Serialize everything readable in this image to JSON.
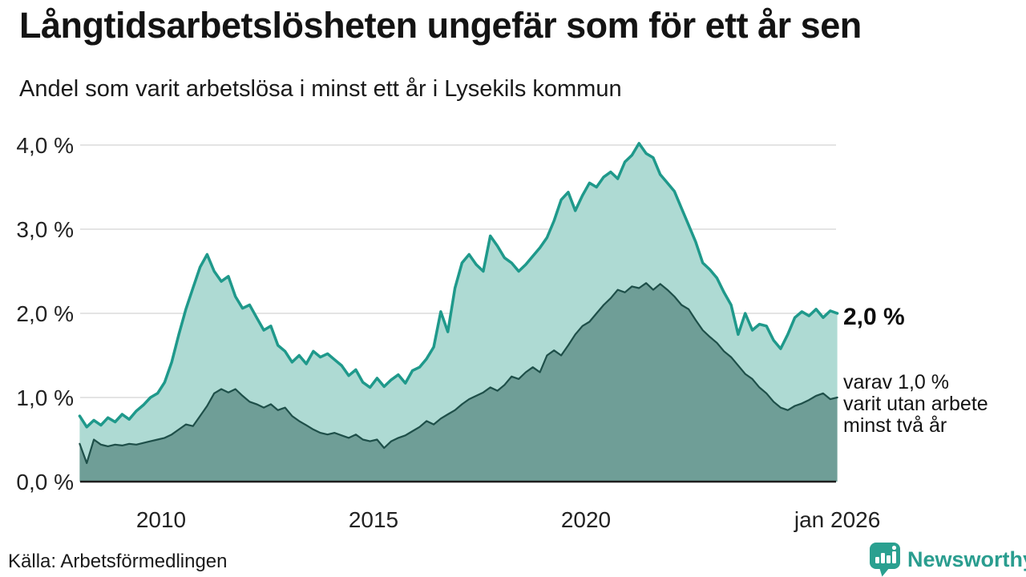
{
  "chart_data": {
    "type": "area",
    "title": "Långtidsarbetslösheten ungefär som för ett år sen",
    "subtitle": "Andel som varit arbetslösa i minst ett år i Lysekils kommun",
    "source": "Källa: Arbetsförmedlingen",
    "x_axis": {
      "start_year": 2008.0833,
      "step_years": 0.166667,
      "range": [
        2008.08,
        2025.92
      ],
      "ticks": [
        {
          "label": "2010",
          "year": 2010
        },
        {
          "label": "2015",
          "year": 2015
        },
        {
          "label": "2020",
          "year": 2020
        },
        {
          "label": "jan 2026",
          "year": 2025.9167
        }
      ]
    },
    "y_axis": {
      "unit": "%",
      "min": 0,
      "max": 4.0,
      "ticks": [
        {
          "value": 0,
          "label": "0,0 %"
        },
        {
          "value": 1,
          "label": "1,0 %"
        },
        {
          "value": 2,
          "label": "2,0 %"
        },
        {
          "value": 3,
          "label": "3,0 %"
        },
        {
          "value": 4,
          "label": "4,0 %"
        }
      ]
    },
    "grid": {
      "color": "#dcdcdc",
      "baseline_color": "#1f1f1f"
    },
    "series": [
      {
        "id": "minst-ett-ar",
        "name": "Andel arbetslösa minst ett år",
        "line_color": "#1f998b",
        "fill_color": "#aedad3",
        "stroke_width": 3.5,
        "end_label": "2,0 %",
        "values": [
          0.78,
          0.65,
          0.73,
          0.67,
          0.76,
          0.71,
          0.8,
          0.74,
          0.84,
          0.91,
          1.0,
          1.05,
          1.18,
          1.42,
          1.75,
          2.05,
          2.3,
          2.55,
          2.7,
          2.5,
          2.38,
          2.44,
          2.2,
          2.06,
          2.1,
          1.95,
          1.8,
          1.85,
          1.62,
          1.55,
          1.42,
          1.5,
          1.4,
          1.55,
          1.48,
          1.52,
          1.45,
          1.38,
          1.26,
          1.33,
          1.18,
          1.12,
          1.23,
          1.13,
          1.21,
          1.27,
          1.17,
          1.32,
          1.36,
          1.46,
          1.6,
          2.02,
          1.78,
          2.3,
          2.6,
          2.7,
          2.58,
          2.5,
          2.92,
          2.8,
          2.66,
          2.6,
          2.5,
          2.58,
          2.68,
          2.78,
          2.9,
          3.1,
          3.35,
          3.44,
          3.22,
          3.4,
          3.55,
          3.5,
          3.62,
          3.68,
          3.6,
          3.8,
          3.88,
          4.02,
          3.9,
          3.85,
          3.65,
          3.55,
          3.45,
          3.25,
          3.05,
          2.85,
          2.6,
          2.52,
          2.42,
          2.25,
          2.1,
          1.75,
          2.0,
          1.8,
          1.87,
          1.85,
          1.68,
          1.58,
          1.75,
          1.95,
          2.02,
          1.97,
          2.05,
          1.95,
          2.03,
          2.0
        ]
      },
      {
        "id": "minst-tva-ar",
        "name": "varav arbetslösa minst två år",
        "line_color": "#1e4f49",
        "fill_color": "#6f9e97",
        "stroke_width": 2.2,
        "end_label": "varav 1,0 %\nvarit utan arbete\nminst två år",
        "values": [
          0.45,
          0.22,
          0.5,
          0.44,
          0.42,
          0.44,
          0.43,
          0.45,
          0.44,
          0.46,
          0.48,
          0.5,
          0.52,
          0.56,
          0.62,
          0.68,
          0.66,
          0.78,
          0.9,
          1.05,
          1.1,
          1.06,
          1.1,
          1.02,
          0.95,
          0.92,
          0.88,
          0.92,
          0.85,
          0.88,
          0.78,
          0.72,
          0.67,
          0.62,
          0.58,
          0.56,
          0.58,
          0.55,
          0.52,
          0.56,
          0.5,
          0.48,
          0.5,
          0.4,
          0.48,
          0.52,
          0.55,
          0.6,
          0.65,
          0.72,
          0.68,
          0.75,
          0.8,
          0.85,
          0.92,
          0.98,
          1.02,
          1.06,
          1.12,
          1.08,
          1.15,
          1.25,
          1.22,
          1.3,
          1.36,
          1.3,
          1.5,
          1.56,
          1.5,
          1.62,
          1.75,
          1.85,
          1.9,
          2.0,
          2.1,
          2.18,
          2.28,
          2.25,
          2.32,
          2.3,
          2.36,
          2.28,
          2.35,
          2.28,
          2.2,
          2.1,
          2.05,
          1.92,
          1.8,
          1.72,
          1.65,
          1.55,
          1.48,
          1.38,
          1.28,
          1.22,
          1.12,
          1.05,
          0.95,
          0.88,
          0.85,
          0.9,
          0.93,
          0.97,
          1.02,
          1.05,
          0.98,
          1.0
        ]
      }
    ]
  },
  "footer": {
    "brand": "Newsworthy"
  },
  "icons": {
    "brand_icon": "newsworthy-speech-bubble-bar-chart",
    "brand_color": "#2aa090"
  }
}
